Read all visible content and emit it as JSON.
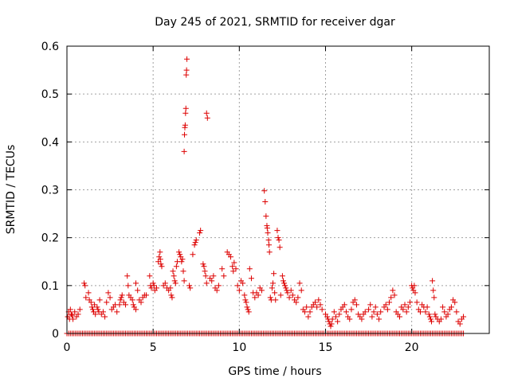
{
  "chart_data": {
    "type": "scatter",
    "title": "Day 245 of 2021, SRMTID for receiver dgar",
    "xlabel": "GPS time / hours",
    "ylabel": "SRMTID / TECUs",
    "xlim": [
      0,
      24.5
    ],
    "ylim": [
      0,
      0.6
    ],
    "xticks": [
      0,
      5,
      10,
      15,
      20
    ],
    "yticks": [
      0,
      0.1,
      0.2,
      0.3,
      0.4,
      0.5,
      0.6
    ],
    "xtick_labels": [
      "0",
      "5",
      "10",
      "15",
      "20"
    ],
    "ytick_labels": [
      "0",
      "0.1",
      "0.2",
      "0.3",
      "0.4",
      "0.5",
      "0.6"
    ],
    "grid": true,
    "marker": "+",
    "color": "#dd0000",
    "series": [
      {
        "name": "SRMTID",
        "points": [
          [
            0.05,
            0.035
          ],
          [
            0.1,
            0.045
          ],
          [
            0.15,
            0.03
          ],
          [
            0.2,
            0.05
          ],
          [
            0.25,
            0.04
          ],
          [
            0.3,
            0.038
          ],
          [
            0.35,
            0.03
          ],
          [
            0.45,
            0.045
          ],
          [
            0.55,
            0.035
          ],
          [
            0.65,
            0.04
          ],
          [
            0.75,
            0.05
          ],
          [
            1.0,
            0.105
          ],
          [
            1.05,
            0.1
          ],
          [
            1.1,
            0.075
          ],
          [
            1.25,
            0.085
          ],
          [
            1.3,
            0.07
          ],
          [
            1.4,
            0.065
          ],
          [
            1.45,
            0.055
          ],
          [
            1.5,
            0.05
          ],
          [
            1.55,
            0.045
          ],
          [
            1.6,
            0.06
          ],
          [
            1.65,
            0.04
          ],
          [
            1.75,
            0.055
          ],
          [
            1.8,
            0.05
          ],
          [
            1.85,
            0.045
          ],
          [
            1.9,
            0.07
          ],
          [
            2.0,
            0.04
          ],
          [
            2.1,
            0.045
          ],
          [
            2.2,
            0.035
          ],
          [
            2.3,
            0.065
          ],
          [
            2.4,
            0.085
          ],
          [
            2.5,
            0.075
          ],
          [
            2.6,
            0.05
          ],
          [
            2.7,
            0.055
          ],
          [
            2.8,
            0.06
          ],
          [
            2.9,
            0.045
          ],
          [
            3.05,
            0.06
          ],
          [
            3.1,
            0.07
          ],
          [
            3.15,
            0.075
          ],
          [
            3.2,
            0.08
          ],
          [
            3.3,
            0.065
          ],
          [
            3.4,
            0.06
          ],
          [
            3.5,
            0.12
          ],
          [
            3.55,
            0.1
          ],
          [
            3.6,
            0.08
          ],
          [
            3.7,
            0.075
          ],
          [
            3.8,
            0.07
          ],
          [
            3.85,
            0.06
          ],
          [
            3.9,
            0.055
          ],
          [
            4.0,
            0.05
          ],
          [
            4.0,
            0.105
          ],
          [
            4.1,
            0.09
          ],
          [
            4.2,
            0.07
          ],
          [
            4.3,
            0.065
          ],
          [
            4.4,
            0.075
          ],
          [
            4.5,
            0.08
          ],
          [
            4.6,
            0.08
          ],
          [
            4.8,
            0.12
          ],
          [
            4.85,
            0.1
          ],
          [
            4.9,
            0.095
          ],
          [
            5.0,
            0.105
          ],
          [
            5.05,
            0.1
          ],
          [
            5.1,
            0.09
          ],
          [
            5.2,
            0.095
          ],
          [
            5.3,
            0.15
          ],
          [
            5.35,
            0.16
          ],
          [
            5.4,
            0.17
          ],
          [
            5.42,
            0.155
          ],
          [
            5.45,
            0.145
          ],
          [
            5.5,
            0.14
          ],
          [
            5.6,
            0.1
          ],
          [
            5.7,
            0.105
          ],
          [
            5.8,
            0.095
          ],
          [
            5.9,
            0.09
          ],
          [
            6.0,
            0.095
          ],
          [
            6.05,
            0.08
          ],
          [
            6.1,
            0.075
          ],
          [
            6.15,
            0.13
          ],
          [
            6.2,
            0.12
          ],
          [
            6.25,
            0.11
          ],
          [
            6.3,
            0.105
          ],
          [
            6.35,
            0.14
          ],
          [
            6.4,
            0.15
          ],
          [
            6.5,
            0.17
          ],
          [
            6.55,
            0.165
          ],
          [
            6.6,
            0.16
          ],
          [
            6.65,
            0.15
          ],
          [
            6.7,
            0.155
          ],
          [
            6.75,
            0.13
          ],
          [
            6.8,
            0.11
          ],
          [
            6.8,
            0.38
          ],
          [
            6.82,
            0.415
          ],
          [
            6.84,
            0.43
          ],
          [
            6.86,
            0.435
          ],
          [
            6.88,
            0.46
          ],
          [
            6.9,
            0.47
          ],
          [
            6.92,
            0.54
          ],
          [
            6.94,
            0.55
          ],
          [
            6.96,
            0.573
          ],
          [
            7.1,
            0.1
          ],
          [
            7.15,
            0.095
          ],
          [
            7.3,
            0.165
          ],
          [
            7.4,
            0.185
          ],
          [
            7.45,
            0.19
          ],
          [
            7.5,
            0.195
          ],
          [
            7.7,
            0.21
          ],
          [
            7.75,
            0.215
          ],
          [
            7.9,
            0.145
          ],
          [
            7.95,
            0.14
          ],
          [
            8.0,
            0.13
          ],
          [
            8.05,
            0.12
          ],
          [
            8.1,
            0.105
          ],
          [
            8.1,
            0.46
          ],
          [
            8.15,
            0.45
          ],
          [
            8.3,
            0.115
          ],
          [
            8.4,
            0.11
          ],
          [
            8.5,
            0.12
          ],
          [
            8.6,
            0.095
          ],
          [
            8.7,
            0.09
          ],
          [
            8.8,
            0.1
          ],
          [
            9.0,
            0.135
          ],
          [
            9.1,
            0.12
          ],
          [
            9.3,
            0.17
          ],
          [
            9.4,
            0.165
          ],
          [
            9.5,
            0.16
          ],
          [
            9.6,
            0.14
          ],
          [
            9.65,
            0.13
          ],
          [
            9.7,
            0.148
          ],
          [
            9.8,
            0.135
          ],
          [
            9.9,
            0.1
          ],
          [
            10.0,
            0.09
          ],
          [
            10.1,
            0.11
          ],
          [
            10.2,
            0.105
          ],
          [
            10.3,
            0.08
          ],
          [
            10.35,
            0.07
          ],
          [
            10.4,
            0.065
          ],
          [
            10.45,
            0.055
          ],
          [
            10.5,
            0.05
          ],
          [
            10.55,
            0.045
          ],
          [
            10.6,
            0.135
          ],
          [
            10.7,
            0.115
          ],
          [
            10.8,
            0.085
          ],
          [
            10.9,
            0.075
          ],
          [
            11.0,
            0.085
          ],
          [
            11.1,
            0.08
          ],
          [
            11.2,
            0.095
          ],
          [
            11.3,
            0.09
          ],
          [
            11.45,
            0.298
          ],
          [
            11.5,
            0.275
          ],
          [
            11.55,
            0.245
          ],
          [
            11.6,
            0.225
          ],
          [
            11.62,
            0.22
          ],
          [
            11.65,
            0.21
          ],
          [
            11.7,
            0.195
          ],
          [
            11.72,
            0.185
          ],
          [
            11.75,
            0.17
          ],
          [
            11.8,
            0.075
          ],
          [
            11.85,
            0.07
          ],
          [
            11.9,
            0.095
          ],
          [
            11.95,
            0.105
          ],
          [
            12.0,
            0.125
          ],
          [
            12.05,
            0.085
          ],
          [
            12.1,
            0.07
          ],
          [
            12.2,
            0.215
          ],
          [
            12.25,
            0.2
          ],
          [
            12.3,
            0.195
          ],
          [
            12.35,
            0.18
          ],
          [
            12.4,
            0.08
          ],
          [
            12.5,
            0.12
          ],
          [
            12.55,
            0.11
          ],
          [
            12.6,
            0.105
          ],
          [
            12.65,
            0.1
          ],
          [
            12.7,
            0.095
          ],
          [
            12.75,
            0.09
          ],
          [
            12.8,
            0.085
          ],
          [
            12.9,
            0.075
          ],
          [
            13.0,
            0.09
          ],
          [
            13.1,
            0.08
          ],
          [
            13.2,
            0.07
          ],
          [
            13.3,
            0.065
          ],
          [
            13.4,
            0.075
          ],
          [
            13.5,
            0.105
          ],
          [
            13.6,
            0.09
          ],
          [
            13.7,
            0.05
          ],
          [
            13.8,
            0.045
          ],
          [
            13.9,
            0.055
          ],
          [
            14.0,
            0.035
          ],
          [
            14.1,
            0.045
          ],
          [
            14.2,
            0.055
          ],
          [
            14.3,
            0.06
          ],
          [
            14.4,
            0.065
          ],
          [
            14.5,
            0.055
          ],
          [
            14.6,
            0.07
          ],
          [
            14.7,
            0.06
          ],
          [
            14.8,
            0.05
          ],
          [
            15.0,
            0.04
          ],
          [
            15.1,
            0.035
          ],
          [
            15.15,
            0.03
          ],
          [
            15.2,
            0.025
          ],
          [
            15.25,
            0.02
          ],
          [
            15.3,
            0.015
          ],
          [
            15.35,
            0.02
          ],
          [
            15.4,
            0.03
          ],
          [
            15.5,
            0.045
          ],
          [
            15.6,
            0.035
          ],
          [
            15.7,
            0.025
          ],
          [
            15.8,
            0.04
          ],
          [
            15.9,
            0.05
          ],
          [
            16.0,
            0.055
          ],
          [
            16.1,
            0.06
          ],
          [
            16.2,
            0.045
          ],
          [
            16.3,
            0.035
          ],
          [
            16.4,
            0.03
          ],
          [
            16.5,
            0.05
          ],
          [
            16.6,
            0.065
          ],
          [
            16.7,
            0.07
          ],
          [
            16.8,
            0.06
          ],
          [
            16.9,
            0.04
          ],
          [
            17.0,
            0.035
          ],
          [
            17.1,
            0.03
          ],
          [
            17.2,
            0.04
          ],
          [
            17.3,
            0.045
          ],
          [
            17.5,
            0.05
          ],
          [
            17.6,
            0.06
          ],
          [
            17.7,
            0.035
          ],
          [
            17.8,
            0.045
          ],
          [
            17.9,
            0.055
          ],
          [
            18.0,
            0.04
          ],
          [
            18.1,
            0.03
          ],
          [
            18.2,
            0.045
          ],
          [
            18.4,
            0.055
          ],
          [
            18.5,
            0.06
          ],
          [
            18.6,
            0.05
          ],
          [
            18.7,
            0.065
          ],
          [
            18.8,
            0.075
          ],
          [
            18.9,
            0.09
          ],
          [
            19.0,
            0.08
          ],
          [
            19.1,
            0.045
          ],
          [
            19.2,
            0.04
          ],
          [
            19.3,
            0.035
          ],
          [
            19.4,
            0.055
          ],
          [
            19.5,
            0.05
          ],
          [
            19.6,
            0.06
          ],
          [
            19.7,
            0.045
          ],
          [
            19.8,
            0.055
          ],
          [
            19.9,
            0.065
          ],
          [
            20.0,
            0.1
          ],
          [
            20.05,
            0.095
          ],
          [
            20.1,
            0.09
          ],
          [
            20.15,
            0.1
          ],
          [
            20.2,
            0.085
          ],
          [
            20.3,
            0.065
          ],
          [
            20.4,
            0.05
          ],
          [
            20.5,
            0.045
          ],
          [
            20.6,
            0.06
          ],
          [
            20.7,
            0.055
          ],
          [
            20.8,
            0.045
          ],
          [
            20.9,
            0.055
          ],
          [
            21.0,
            0.04
          ],
          [
            21.05,
            0.035
          ],
          [
            21.1,
            0.03
          ],
          [
            21.15,
            0.025
          ],
          [
            21.2,
            0.11
          ],
          [
            21.25,
            0.09
          ],
          [
            21.3,
            0.075
          ],
          [
            21.35,
            0.04
          ],
          [
            21.4,
            0.035
          ],
          [
            21.5,
            0.03
          ],
          [
            21.6,
            0.025
          ],
          [
            21.7,
            0.03
          ],
          [
            21.8,
            0.055
          ],
          [
            21.9,
            0.045
          ],
          [
            22.0,
            0.035
          ],
          [
            22.1,
            0.04
          ],
          [
            22.2,
            0.05
          ],
          [
            22.3,
            0.055
          ],
          [
            22.4,
            0.07
          ],
          [
            22.5,
            0.065
          ],
          [
            22.6,
            0.045
          ],
          [
            22.7,
            0.025
          ],
          [
            22.8,
            0.02
          ],
          [
            22.9,
            0.03
          ],
          [
            23.0,
            0.035
          ]
        ]
      },
      {
        "name": "SRMTID baseline",
        "x_range": [
          0,
          23
        ],
        "step": 0.1,
        "value": 0
      }
    ]
  }
}
